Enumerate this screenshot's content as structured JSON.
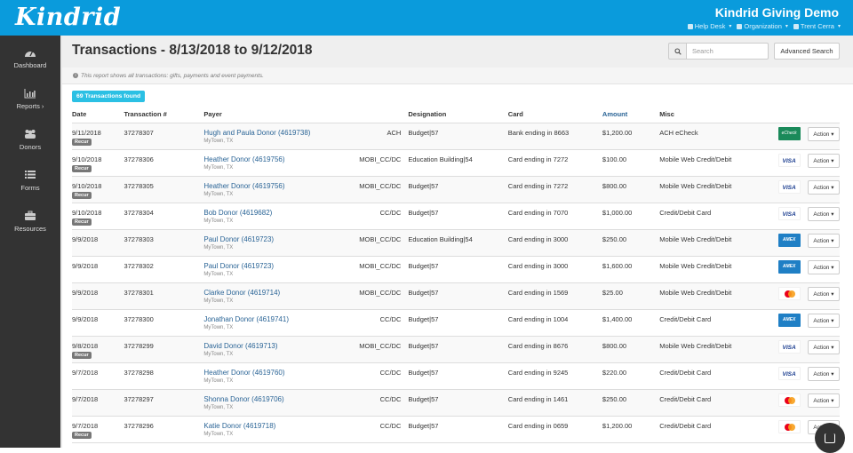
{
  "header": {
    "logo": "Kindrid",
    "org_title": "Kindrid Giving Demo",
    "nav": [
      {
        "label": "Help Desk",
        "icon": "help-desk-icon"
      },
      {
        "label": "Organization",
        "icon": "building-icon"
      },
      {
        "label": "Trent Cerra",
        "icon": "user-icon"
      }
    ]
  },
  "sidebar": {
    "items": [
      {
        "label": "Dashboard",
        "icon": "dashboard-icon"
      },
      {
        "label": "Reports ›",
        "icon": "bar-chart-icon"
      },
      {
        "label": "Donors",
        "icon": "users-icon"
      },
      {
        "label": "Forms",
        "icon": "list-icon"
      },
      {
        "label": "Resources",
        "icon": "briefcase-icon"
      }
    ]
  },
  "page": {
    "title": "Transactions - 8/13/2018 to 9/12/2018",
    "search_placeholder": "Search",
    "advanced_search": "Advanced Search",
    "info": "This report shows all transactions: gifts, payments and event payments.",
    "found": "69 Transactions found"
  },
  "table": {
    "headers": {
      "date": "Date",
      "txn": "Transaction #",
      "payer": "Payer",
      "designation": "Designation",
      "card": "Card",
      "amount": "Amount",
      "misc": "Misc"
    },
    "recur_label": "Recur",
    "action_label": "Action ▾",
    "rows": [
      {
        "date": "9/11/2018",
        "recur": true,
        "txn": "37278307",
        "payer": "Hugh and Paula Donor (4619738)",
        "location": "MyTown, TX",
        "method": "ACH",
        "designation": "Budget|57",
        "card": "Bank ending in 8663",
        "amount": "$1,200.00",
        "misc": "ACH eCheck",
        "logo": "echeck",
        "logo_text": "eCheck"
      },
      {
        "date": "9/10/2018",
        "recur": true,
        "txn": "37278306",
        "payer": "Heather Donor (4619756)",
        "location": "MyTown, TX",
        "method": "MOBI_CC/DC",
        "designation": "Education Building|54",
        "card": "Card ending in 7272",
        "amount": "$100.00",
        "misc": "Mobile Web Credit/Debit",
        "logo": "visa",
        "logo_text": "VISA"
      },
      {
        "date": "9/10/2018",
        "recur": true,
        "txn": "37278305",
        "payer": "Heather Donor (4619756)",
        "location": "MyTown, TX",
        "method": "MOBI_CC/DC",
        "designation": "Budget|57",
        "card": "Card ending in 7272",
        "amount": "$800.00",
        "misc": "Mobile Web Credit/Debit",
        "logo": "visa",
        "logo_text": "VISA"
      },
      {
        "date": "9/10/2018",
        "recur": true,
        "txn": "37278304",
        "payer": "Bob Donor (4619682)",
        "location": "MyTown, TX",
        "method": "CC/DC",
        "designation": "Budget|57",
        "card": "Card ending in 7070",
        "amount": "$1,000.00",
        "misc": "Credit/Debit Card",
        "logo": "visa",
        "logo_text": "VISA"
      },
      {
        "date": "9/9/2018",
        "recur": false,
        "txn": "37278303",
        "payer": "Paul Donor (4619723)",
        "location": "MyTown, TX",
        "method": "MOBI_CC/DC",
        "designation": "Education Building|54",
        "card": "Card ending in 3000",
        "amount": "$250.00",
        "misc": "Mobile Web Credit/Debit",
        "logo": "amex",
        "logo_text": "AMEX"
      },
      {
        "date": "9/9/2018",
        "recur": false,
        "txn": "37278302",
        "payer": "Paul Donor (4619723)",
        "location": "MyTown, TX",
        "method": "MOBI_CC/DC",
        "designation": "Budget|57",
        "card": "Card ending in 3000",
        "amount": "$1,600.00",
        "misc": "Mobile Web Credit/Debit",
        "logo": "amex",
        "logo_text": "AMEX"
      },
      {
        "date": "9/9/2018",
        "recur": false,
        "txn": "37278301",
        "payer": "Clarke Donor (4619714)",
        "location": "MyTown, TX",
        "method": "MOBI_CC/DC",
        "designation": "Budget|57",
        "card": "Card ending in 1569",
        "amount": "$25.00",
        "misc": "Mobile Web Credit/Debit",
        "logo": "mc",
        "logo_text": ""
      },
      {
        "date": "9/9/2018",
        "recur": false,
        "txn": "37278300",
        "payer": "Jonathan Donor (4619741)",
        "location": "MyTown, TX",
        "method": "CC/DC",
        "designation": "Budget|57",
        "card": "Card ending in 1004",
        "amount": "$1,400.00",
        "misc": "Credit/Debit Card",
        "logo": "amex",
        "logo_text": "AMEX"
      },
      {
        "date": "9/8/2018",
        "recur": true,
        "txn": "37278299",
        "payer": "David Donor (4619713)",
        "location": "MyTown, TX",
        "method": "MOBI_CC/DC",
        "designation": "Budget|57",
        "card": "Card ending in 8676",
        "amount": "$800.00",
        "misc": "Mobile Web Credit/Debit",
        "logo": "visa",
        "logo_text": "VISA"
      },
      {
        "date": "9/7/2018",
        "recur": false,
        "txn": "37278298",
        "payer": "Heather Donor (4619760)",
        "location": "MyTown, TX",
        "method": "CC/DC",
        "designation": "Budget|57",
        "card": "Card ending in 9245",
        "amount": "$220.00",
        "misc": "Credit/Debit Card",
        "logo": "visa",
        "logo_text": "VISA"
      },
      {
        "date": "9/7/2018",
        "recur": false,
        "txn": "37278297",
        "payer": "Shonna Donor (4619706)",
        "location": "MyTown, TX",
        "method": "CC/DC",
        "designation": "Budget|57",
        "card": "Card ending in 1461",
        "amount": "$250.00",
        "misc": "Credit/Debit Card",
        "logo": "mc",
        "logo_text": ""
      },
      {
        "date": "9/7/2018",
        "recur": true,
        "txn": "37278296",
        "payer": "Katie Donor (4619718)",
        "location": "MyTown, TX",
        "method": "CC/DC",
        "designation": "Budget|57",
        "card": "Card ending in 0659",
        "amount": "$1,200.00",
        "misc": "Credit/Debit Card",
        "logo": "mc",
        "logo_text": ""
      }
    ]
  },
  "colors": {
    "brand": "#0a9bdc",
    "sidebar": "#333333",
    "link": "#2a6496",
    "badge": "#2bc0e4"
  }
}
